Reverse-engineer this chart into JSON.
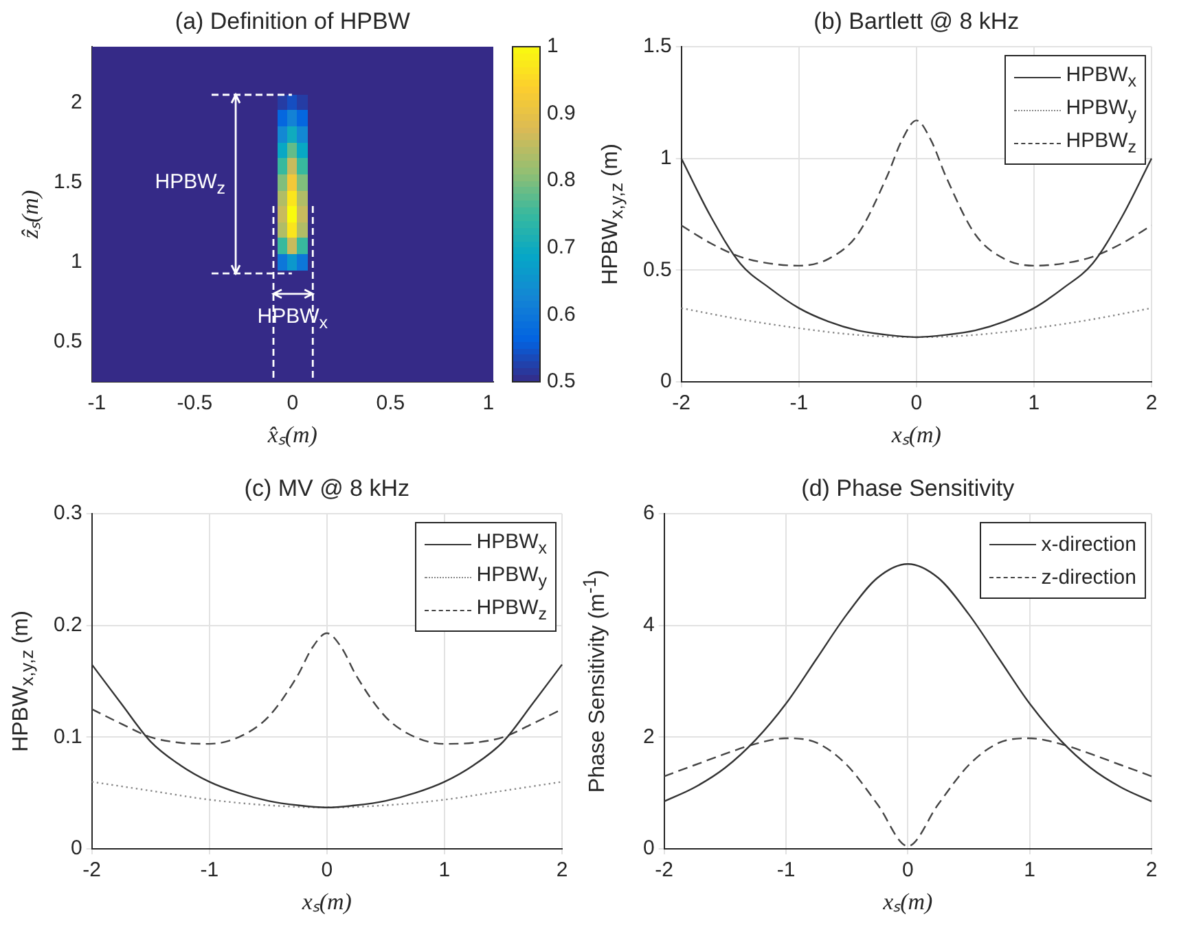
{
  "chart_data": [
    {
      "type": "heatmap",
      "title": "(a) Definition of HPBW",
      "xlabel": "x̂ₛ(m)",
      "ylabel": "ẑₛ(m)",
      "categories": [
        "-1",
        null,
        null,
        null,
        null,
        null,
        null,
        null,
        null,
        null,
        "-0.5",
        null,
        null,
        null,
        null,
        null,
        null,
        null,
        null,
        null,
        "0",
        null,
        null,
        null,
        null,
        null,
        null,
        null,
        null,
        null,
        "0.5",
        null,
        null,
        null,
        null,
        null,
        null,
        null,
        null,
        null,
        "1"
      ],
      "y_categories": [
        null,
        null,
        null,
        "2",
        null,
        null,
        null,
        null,
        "1.5",
        null,
        null,
        null,
        null,
        "1",
        null,
        null,
        null,
        null,
        "0.5",
        null,
        null
      ],
      "cells": [
        [
          0.5,
          0.5,
          0.5,
          0.5,
          0.5,
          0.5,
          0.5,
          0.5,
          0.5,
          0.5,
          0.5,
          0.5,
          0.5,
          0.5,
          0.5,
          0.5,
          0.5,
          0.5,
          0.5,
          0.5,
          0.5,
          0.5,
          0.5,
          0.5,
          0.5,
          0.5,
          0.5,
          0.5,
          0.5,
          0.5,
          0.5,
          0.5,
          0.5,
          0.5,
          0.5,
          0.5,
          0.5,
          0.5,
          0.5,
          0.5,
          0.5
        ],
        [
          0.5,
          0.5,
          0.5,
          0.5,
          0.5,
          0.5,
          0.5,
          0.5,
          0.5,
          0.5,
          0.5,
          0.5,
          0.5,
          0.5,
          0.5,
          0.5,
          0.5,
          0.5,
          0.5,
          0.5,
          0.5,
          0.5,
          0.5,
          0.5,
          0.5,
          0.5,
          0.5,
          0.5,
          0.5,
          0.5,
          0.5,
          0.5,
          0.5,
          0.5,
          0.5,
          0.5,
          0.5,
          0.5,
          0.5,
          0.5,
          0.5
        ],
        [
          0.5,
          0.5,
          0.5,
          0.5,
          0.5,
          0.5,
          0.5,
          0.5,
          0.5,
          0.5,
          0.5,
          0.5,
          0.5,
          0.5,
          0.5,
          0.5,
          0.5,
          0.5,
          0.5,
          0.5,
          0.5,
          0.5,
          0.5,
          0.5,
          0.5,
          0.5,
          0.5,
          0.5,
          0.5,
          0.5,
          0.5,
          0.5,
          0.5,
          0.5,
          0.5,
          0.5,
          0.5,
          0.5,
          0.5,
          0.5,
          0.5
        ],
        [
          0.5,
          0.5,
          0.5,
          0.5,
          0.5,
          0.5,
          0.5,
          0.5,
          0.5,
          0.5,
          0.5,
          0.5,
          0.5,
          0.5,
          0.5,
          0.5,
          0.5,
          0.5,
          0.5,
          0.52,
          0.54,
          0.52,
          0.5,
          0.5,
          0.5,
          0.5,
          0.5,
          0.5,
          0.5,
          0.5,
          0.5,
          0.5,
          0.5,
          0.5,
          0.5,
          0.5,
          0.5,
          0.5,
          0.5,
          0.5,
          0.5
        ],
        [
          0.5,
          0.5,
          0.5,
          0.5,
          0.5,
          0.5,
          0.5,
          0.5,
          0.5,
          0.5,
          0.5,
          0.5,
          0.5,
          0.5,
          0.5,
          0.5,
          0.5,
          0.5,
          0.5,
          0.57,
          0.62,
          0.57,
          0.5,
          0.5,
          0.5,
          0.5,
          0.5,
          0.5,
          0.5,
          0.5,
          0.5,
          0.5,
          0.5,
          0.5,
          0.5,
          0.5,
          0.5,
          0.5,
          0.5,
          0.5,
          0.5
        ],
        [
          0.5,
          0.5,
          0.5,
          0.5,
          0.5,
          0.5,
          0.5,
          0.5,
          0.5,
          0.5,
          0.5,
          0.5,
          0.5,
          0.5,
          0.5,
          0.5,
          0.5,
          0.5,
          0.5,
          0.63,
          0.7,
          0.63,
          0.5,
          0.5,
          0.5,
          0.5,
          0.5,
          0.5,
          0.5,
          0.5,
          0.5,
          0.5,
          0.5,
          0.5,
          0.5,
          0.5,
          0.5,
          0.5,
          0.5,
          0.5,
          0.5
        ],
        [
          0.5,
          0.5,
          0.5,
          0.5,
          0.5,
          0.5,
          0.5,
          0.5,
          0.5,
          0.5,
          0.5,
          0.5,
          0.5,
          0.5,
          0.5,
          0.5,
          0.5,
          0.5,
          0.5,
          0.69,
          0.78,
          0.69,
          0.5,
          0.5,
          0.5,
          0.5,
          0.5,
          0.5,
          0.5,
          0.5,
          0.5,
          0.5,
          0.5,
          0.5,
          0.5,
          0.5,
          0.5,
          0.5,
          0.5,
          0.5,
          0.5
        ],
        [
          0.5,
          0.5,
          0.5,
          0.5,
          0.5,
          0.5,
          0.5,
          0.5,
          0.5,
          0.5,
          0.5,
          0.5,
          0.5,
          0.5,
          0.5,
          0.5,
          0.5,
          0.5,
          0.5,
          0.75,
          0.86,
          0.75,
          0.5,
          0.5,
          0.5,
          0.5,
          0.5,
          0.5,
          0.5,
          0.5,
          0.5,
          0.5,
          0.5,
          0.5,
          0.5,
          0.5,
          0.5,
          0.5,
          0.5,
          0.5,
          0.5
        ],
        [
          0.5,
          0.5,
          0.5,
          0.5,
          0.5,
          0.5,
          0.5,
          0.5,
          0.5,
          0.5,
          0.5,
          0.5,
          0.5,
          0.5,
          0.5,
          0.5,
          0.5,
          0.5,
          0.5,
          0.8,
          0.92,
          0.8,
          0.5,
          0.5,
          0.5,
          0.5,
          0.5,
          0.5,
          0.5,
          0.5,
          0.5,
          0.5,
          0.5,
          0.5,
          0.5,
          0.5,
          0.5,
          0.5,
          0.5,
          0.5,
          0.5
        ],
        [
          0.5,
          0.5,
          0.5,
          0.5,
          0.5,
          0.5,
          0.5,
          0.5,
          0.5,
          0.5,
          0.5,
          0.5,
          0.5,
          0.5,
          0.5,
          0.5,
          0.5,
          0.5,
          0.5,
          0.84,
          0.97,
          0.84,
          0.5,
          0.5,
          0.5,
          0.5,
          0.5,
          0.5,
          0.5,
          0.5,
          0.5,
          0.5,
          0.5,
          0.5,
          0.5,
          0.5,
          0.5,
          0.5,
          0.5,
          0.5,
          0.5
        ],
        [
          0.5,
          0.5,
          0.5,
          0.5,
          0.5,
          0.5,
          0.5,
          0.5,
          0.5,
          0.5,
          0.5,
          0.5,
          0.5,
          0.5,
          0.5,
          0.5,
          0.5,
          0.5,
          0.5,
          0.86,
          1,
          0.86,
          0.5,
          0.5,
          0.5,
          0.5,
          0.5,
          0.5,
          0.5,
          0.5,
          0.5,
          0.5,
          0.5,
          0.5,
          0.5,
          0.5,
          0.5,
          0.5,
          0.5,
          0.5,
          0.5
        ],
        [
          0.5,
          0.5,
          0.5,
          0.5,
          0.5,
          0.5,
          0.5,
          0.5,
          0.5,
          0.5,
          0.5,
          0.5,
          0.5,
          0.5,
          0.5,
          0.5,
          0.5,
          0.5,
          0.5,
          0.84,
          0.97,
          0.84,
          0.5,
          0.5,
          0.5,
          0.5,
          0.5,
          0.5,
          0.5,
          0.5,
          0.5,
          0.5,
          0.5,
          0.5,
          0.5,
          0.5,
          0.5,
          0.5,
          0.5,
          0.5,
          0.5
        ],
        [
          0.5,
          0.5,
          0.5,
          0.5,
          0.5,
          0.5,
          0.5,
          0.5,
          0.5,
          0.5,
          0.5,
          0.5,
          0.5,
          0.5,
          0.5,
          0.5,
          0.5,
          0.5,
          0.5,
          0.75,
          0.86,
          0.75,
          0.5,
          0.5,
          0.5,
          0.5,
          0.5,
          0.5,
          0.5,
          0.5,
          0.5,
          0.5,
          0.5,
          0.5,
          0.5,
          0.5,
          0.5,
          0.5,
          0.5,
          0.5,
          0.5
        ],
        [
          0.5,
          0.5,
          0.5,
          0.5,
          0.5,
          0.5,
          0.5,
          0.5,
          0.5,
          0.5,
          0.5,
          0.5,
          0.5,
          0.5,
          0.5,
          0.5,
          0.5,
          0.5,
          0.5,
          0.6,
          0.66,
          0.6,
          0.5,
          0.5,
          0.5,
          0.5,
          0.5,
          0.5,
          0.5,
          0.5,
          0.5,
          0.5,
          0.5,
          0.5,
          0.5,
          0.5,
          0.5,
          0.5,
          0.5,
          0.5,
          0.5
        ],
        [
          0.5,
          0.5,
          0.5,
          0.5,
          0.5,
          0.5,
          0.5,
          0.5,
          0.5,
          0.5,
          0.5,
          0.5,
          0.5,
          0.5,
          0.5,
          0.5,
          0.5,
          0.5,
          0.5,
          0.5,
          0.5,
          0.5,
          0.5,
          0.5,
          0.5,
          0.5,
          0.5,
          0.5,
          0.5,
          0.5,
          0.5,
          0.5,
          0.5,
          0.5,
          0.5,
          0.5,
          0.5,
          0.5,
          0.5,
          0.5,
          0.5
        ],
        [
          0.5,
          0.5,
          0.5,
          0.5,
          0.5,
          0.5,
          0.5,
          0.5,
          0.5,
          0.5,
          0.5,
          0.5,
          0.5,
          0.5,
          0.5,
          0.5,
          0.5,
          0.5,
          0.5,
          0.5,
          0.5,
          0.5,
          0.5,
          0.5,
          0.5,
          0.5,
          0.5,
          0.5,
          0.5,
          0.5,
          0.5,
          0.5,
          0.5,
          0.5,
          0.5,
          0.5,
          0.5,
          0.5,
          0.5,
          0.5,
          0.5
        ],
        [
          0.5,
          0.5,
          0.5,
          0.5,
          0.5,
          0.5,
          0.5,
          0.5,
          0.5,
          0.5,
          0.5,
          0.5,
          0.5,
          0.5,
          0.5,
          0.5,
          0.5,
          0.5,
          0.5,
          0.5,
          0.5,
          0.5,
          0.5,
          0.5,
          0.5,
          0.5,
          0.5,
          0.5,
          0.5,
          0.5,
          0.5,
          0.5,
          0.5,
          0.5,
          0.5,
          0.5,
          0.5,
          0.5,
          0.5,
          0.5,
          0.5
        ],
        [
          0.5,
          0.5,
          0.5,
          0.5,
          0.5,
          0.5,
          0.5,
          0.5,
          0.5,
          0.5,
          0.5,
          0.5,
          0.5,
          0.5,
          0.5,
          0.5,
          0.5,
          0.5,
          0.5,
          0.5,
          0.5,
          0.5,
          0.5,
          0.5,
          0.5,
          0.5,
          0.5,
          0.5,
          0.5,
          0.5,
          0.5,
          0.5,
          0.5,
          0.5,
          0.5,
          0.5,
          0.5,
          0.5,
          0.5,
          0.5,
          0.5
        ],
        [
          0.5,
          0.5,
          0.5,
          0.5,
          0.5,
          0.5,
          0.5,
          0.5,
          0.5,
          0.5,
          0.5,
          0.5,
          0.5,
          0.5,
          0.5,
          0.5,
          0.5,
          0.5,
          0.5,
          0.5,
          0.5,
          0.5,
          0.5,
          0.5,
          0.5,
          0.5,
          0.5,
          0.5,
          0.5,
          0.5,
          0.5,
          0.5,
          0.5,
          0.5,
          0.5,
          0.5,
          0.5,
          0.5,
          0.5,
          0.5,
          0.5
        ],
        [
          0.5,
          0.5,
          0.5,
          0.5,
          0.5,
          0.5,
          0.5,
          0.5,
          0.5,
          0.5,
          0.5,
          0.5,
          0.5,
          0.5,
          0.5,
          0.5,
          0.5,
          0.5,
          0.5,
          0.5,
          0.5,
          0.5,
          0.5,
          0.5,
          0.5,
          0.5,
          0.5,
          0.5,
          0.5,
          0.5,
          0.5,
          0.5,
          0.5,
          0.5,
          0.5,
          0.5,
          0.5,
          0.5,
          0.5,
          0.5,
          0.5
        ],
        [
          0.5,
          0.5,
          0.5,
          0.5,
          0.5,
          0.5,
          0.5,
          0.5,
          0.5,
          0.5,
          0.5,
          0.5,
          0.5,
          0.5,
          0.5,
          0.5,
          0.5,
          0.5,
          0.5,
          0.5,
          0.5,
          0.5,
          0.5,
          0.5,
          0.5,
          0.5,
          0.5,
          0.5,
          0.5,
          0.5,
          0.5,
          0.5,
          0.5,
          0.5,
          0.5,
          0.5,
          0.5,
          0.5,
          0.5,
          0.5,
          0.5
        ]
      ],
      "clim": [
        0.5,
        1
      ],
      "cticks": [
        0.5,
        0.6,
        0.7,
        0.8,
        0.9,
        1
      ],
      "annotations": [
        "HPBW$_{z}$",
        "HPBW$_{x}$"
      ]
    },
    {
      "type": "line",
      "title": "(b) Bartlett @ 8 kHz",
      "xlabel": "xₛ(m)",
      "ylabel": "HPBW$_{x,y,z}$ (m)",
      "grid": true,
      "legend": "top right",
      "xlim": [
        -2,
        2
      ],
      "xticks": [
        -2,
        -1,
        0,
        1,
        2
      ],
      "ylim": [
        0,
        1.5
      ],
      "yticks": [
        0,
        0.5,
        1,
        1.5
      ],
      "series": [
        {
          "name": "HPBW$_{x}$",
          "color": "#333333",
          "line_style": "solid",
          "x": [
            -2,
            -1.75,
            -1.5,
            -1.25,
            -1,
            -0.75,
            -0.5,
            -0.25,
            0,
            0.25,
            0.5,
            0.75,
            1,
            1.25,
            1.5,
            1.75,
            2
          ],
          "values": [
            1.0,
            0.74,
            0.53,
            0.42,
            0.33,
            0.27,
            0.23,
            0.21,
            0.2,
            0.21,
            0.23,
            0.27,
            0.33,
            0.42,
            0.53,
            0.74,
            1.0
          ]
        },
        {
          "name": "HPBW$_{y}$",
          "color": "#888888",
          "line_style": "dotted",
          "x": [
            -2,
            -1.5,
            -1,
            -0.5,
            0,
            0.5,
            1,
            1.5,
            2
          ],
          "values": [
            0.33,
            0.28,
            0.24,
            0.21,
            0.2,
            0.21,
            0.24,
            0.28,
            0.33
          ]
        },
        {
          "name": "HPBW$_{z}$",
          "color": "#444444",
          "line_style": "dashed",
          "x": [
            -2,
            -1.75,
            -1.5,
            -1.25,
            -1,
            -0.75,
            -0.5,
            -0.25,
            -0.125,
            0,
            0.125,
            0.25,
            0.5,
            0.75,
            1,
            1.25,
            1.5,
            1.75,
            2
          ],
          "values": [
            0.7,
            0.62,
            0.56,
            0.53,
            0.52,
            0.55,
            0.66,
            0.92,
            1.08,
            1.17,
            1.08,
            0.92,
            0.66,
            0.55,
            0.52,
            0.53,
            0.56,
            0.62,
            0.7
          ]
        }
      ]
    },
    {
      "type": "line",
      "title": "(c) MV @ 8 kHz",
      "xlabel": "xₛ(m)",
      "ylabel": "HPBW$_{x,y,z}$ (m)",
      "grid": true,
      "legend": "top right",
      "xlim": [
        -2,
        2
      ],
      "xticks": [
        -2,
        -1,
        0,
        1,
        2
      ],
      "ylim": [
        0,
        0.3
      ],
      "yticks": [
        0,
        0.1,
        0.2,
        0.3
      ],
      "series": [
        {
          "name": "HPBW$_{x}$",
          "color": "#333333",
          "line_style": "solid",
          "x": [
            -2,
            -1.75,
            -1.5,
            -1.25,
            -1,
            -0.75,
            -0.5,
            -0.25,
            0,
            0.25,
            0.5,
            0.75,
            1,
            1.25,
            1.5,
            1.75,
            2
          ],
          "values": [
            0.165,
            0.13,
            0.096,
            0.075,
            0.06,
            0.05,
            0.043,
            0.039,
            0.037,
            0.039,
            0.043,
            0.05,
            0.06,
            0.075,
            0.096,
            0.13,
            0.165
          ]
        },
        {
          "name": "HPBW$_{y}$",
          "color": "#888888",
          "line_style": "dotted",
          "x": [
            -2,
            -1.5,
            -1,
            -0.5,
            0,
            0.5,
            1,
            1.5,
            2
          ],
          "values": [
            0.06,
            0.052,
            0.044,
            0.039,
            0.037,
            0.039,
            0.044,
            0.052,
            0.06
          ]
        },
        {
          "name": "HPBW$_{z}$",
          "color": "#444444",
          "line_style": "dashed",
          "x": [
            -2,
            -1.75,
            -1.5,
            -1.25,
            -1,
            -0.75,
            -0.5,
            -0.25,
            -0.125,
            0,
            0.125,
            0.25,
            0.5,
            0.75,
            1,
            1.25,
            1.5,
            1.75,
            2
          ],
          "values": [
            0.125,
            0.112,
            0.1,
            0.095,
            0.094,
            0.1,
            0.118,
            0.155,
            0.18,
            0.193,
            0.18,
            0.155,
            0.118,
            0.1,
            0.094,
            0.095,
            0.1,
            0.112,
            0.125
          ]
        }
      ]
    },
    {
      "type": "line",
      "title": "(d) Phase Sensitivity",
      "xlabel": "xₛ(m)",
      "ylabel": "Phase Sensitivity (m$^{-1}$)",
      "grid": true,
      "legend": "top right",
      "xlim": [
        -2,
        2
      ],
      "xticks": [
        -2,
        -1,
        0,
        1,
        2
      ],
      "ylim": [
        0,
        6
      ],
      "yticks": [
        0,
        2,
        4,
        6
      ],
      "series": [
        {
          "name": "x-direction",
          "color": "#333333",
          "line_style": "solid",
          "x": [
            -2,
            -1.75,
            -1.5,
            -1.25,
            -1,
            -0.75,
            -0.5,
            -0.25,
            0,
            0.25,
            0.5,
            0.75,
            1,
            1.25,
            1.5,
            1.75,
            2
          ],
          "values": [
            0.85,
            1.1,
            1.45,
            1.95,
            2.6,
            3.4,
            4.2,
            4.85,
            5.1,
            4.85,
            4.2,
            3.4,
            2.6,
            1.95,
            1.45,
            1.1,
            0.85
          ]
        },
        {
          "name": "z-direction",
          "color": "#444444",
          "line_style": "dashed",
          "x": [
            -2,
            -1.75,
            -1.5,
            -1.25,
            -1,
            -0.75,
            -0.5,
            -0.25,
            0,
            0.25,
            0.5,
            0.75,
            1,
            1.25,
            1.5,
            1.75,
            2
          ],
          "values": [
            1.3,
            1.5,
            1.7,
            1.88,
            1.98,
            1.9,
            1.5,
            0.8,
            0.05,
            0.8,
            1.5,
            1.9,
            1.98,
            1.88,
            1.7,
            1.5,
            1.3
          ]
        }
      ]
    }
  ]
}
